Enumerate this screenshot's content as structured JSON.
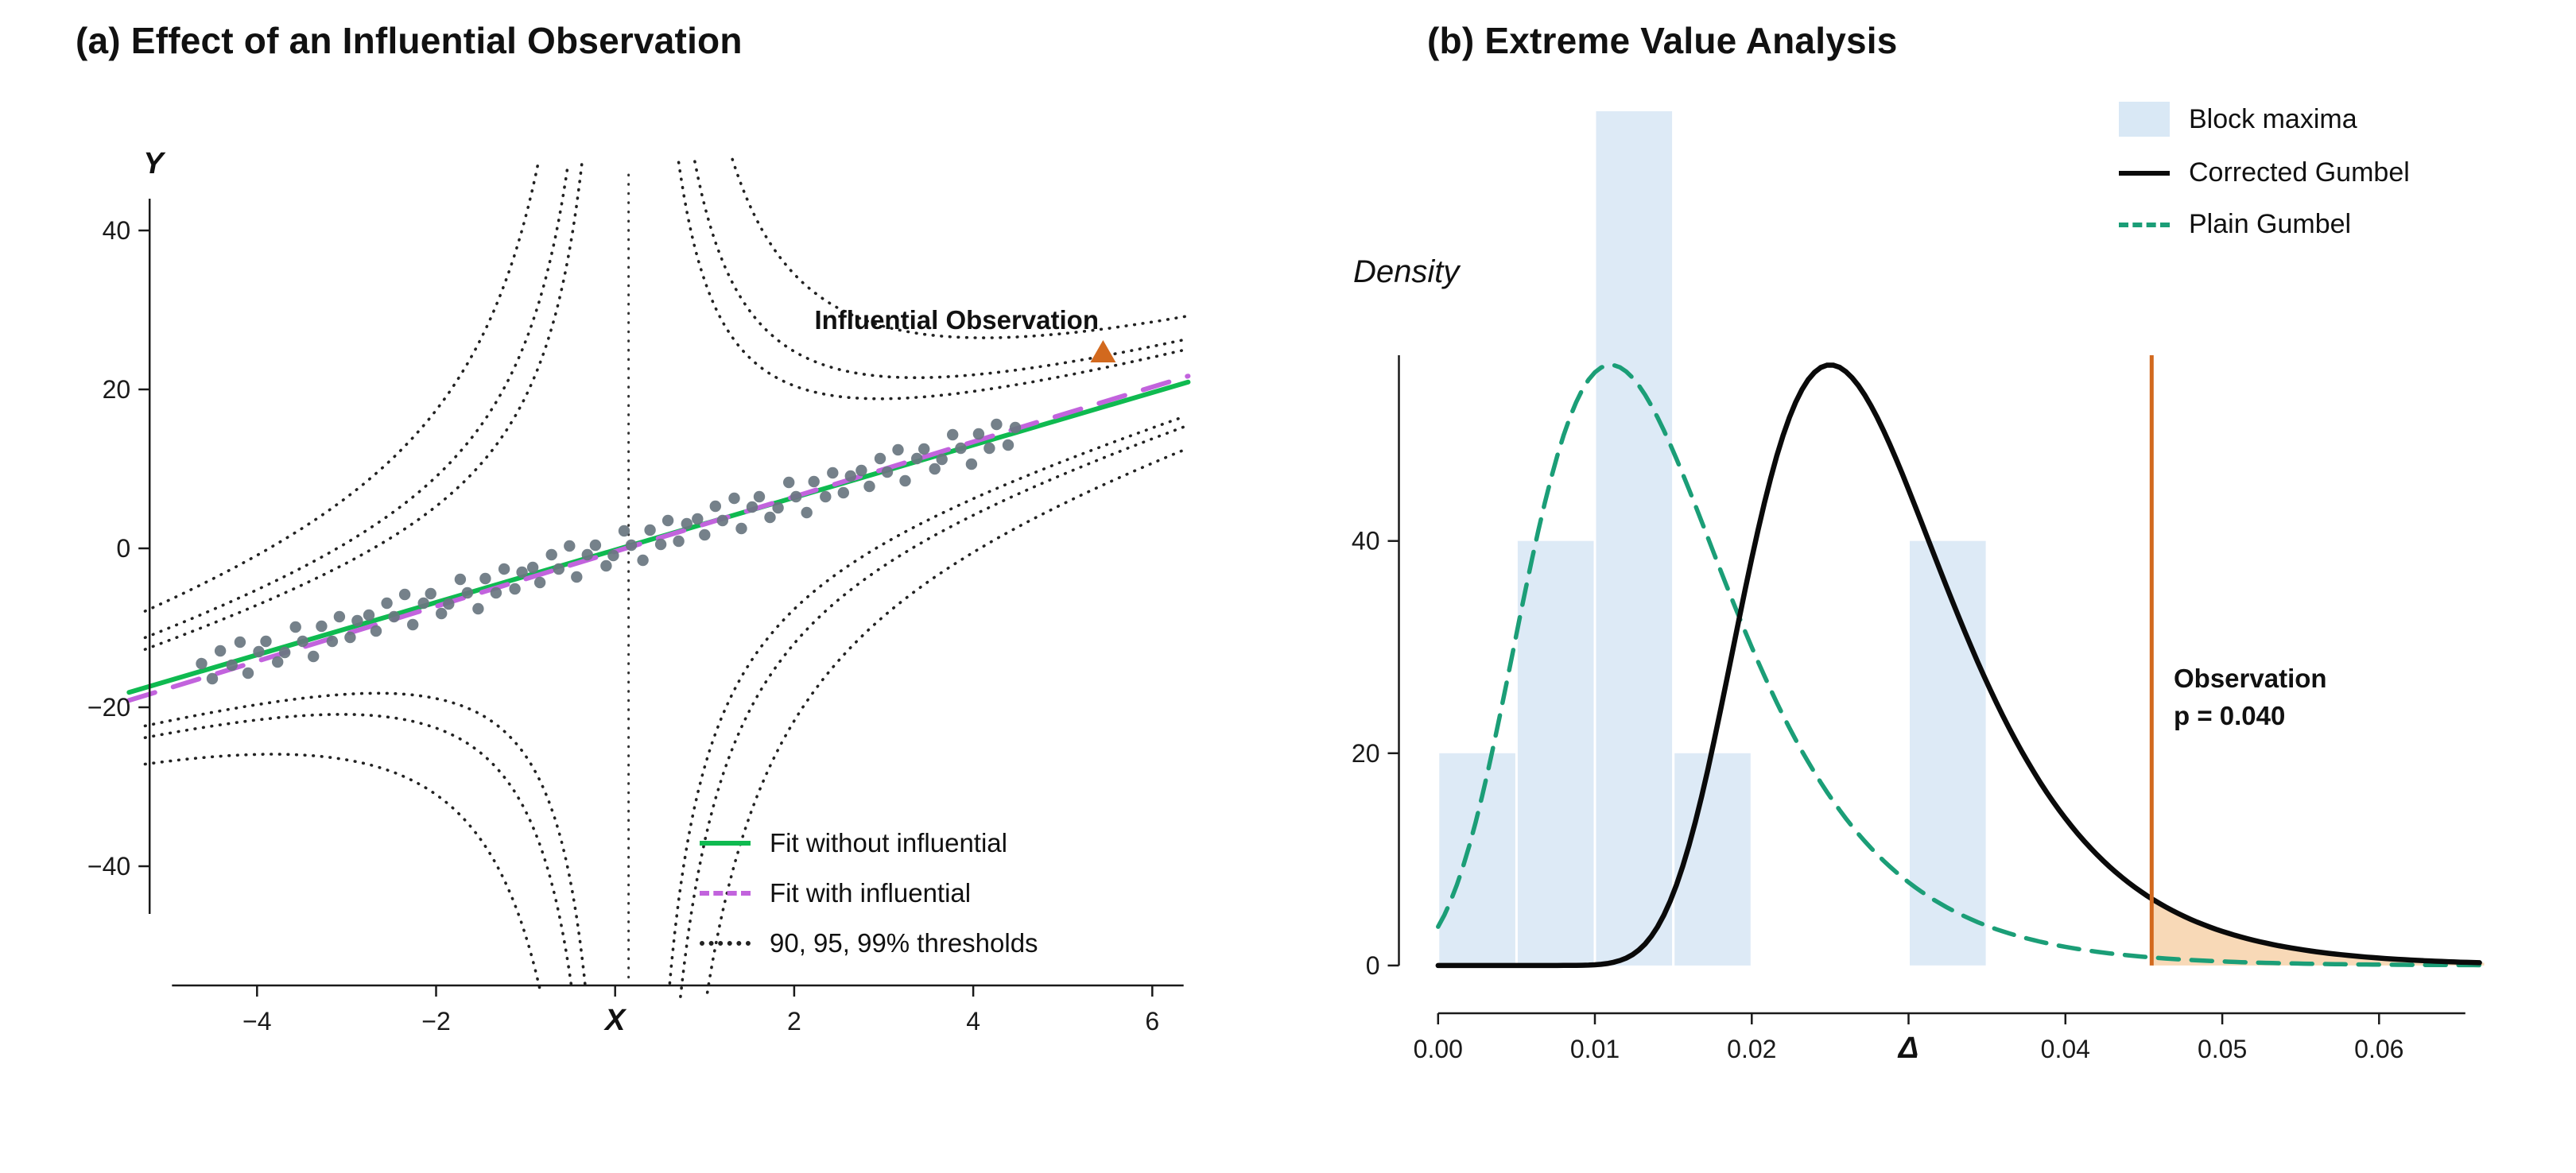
{
  "figure": {
    "background": "#ffffff"
  },
  "chart_data": [
    {
      "type": "scatter",
      "title": "(a) Effect of an Influential Observation",
      "xlabel": "X",
      "ylabel": "Y",
      "xlim": [
        -5.45,
        6.45
      ],
      "ylim": [
        -58,
        50
      ],
      "xticks": {
        "values": [
          -4,
          -2,
          0,
          2,
          4,
          6
        ],
        "labels": [
          "−4",
          "−2",
          "X",
          "2",
          "4",
          "6"
        ]
      },
      "yticks": {
        "values": [
          -40,
          -20,
          0,
          20,
          40
        ],
        "labels": [
          "−40",
          "−20",
          "0",
          "20",
          "40"
        ]
      },
      "fit_without": {
        "label": "Fit without influential",
        "slope": 3.3,
        "intercept": -0.2,
        "color": "#0fba50",
        "style": "solid"
      },
      "fit_with": {
        "label": "Fit with influential",
        "slope": 3.45,
        "intercept": -0.4,
        "color": "#c263dd",
        "style": "dashed"
      },
      "thresholds": {
        "label": "90, 95, 99% thresholds",
        "levels": [
          90,
          95,
          99
        ],
        "center_x": 0.15,
        "c_values": [
          26,
          34,
          52
        ],
        "color": "#222222",
        "style": "dotted"
      },
      "influential_point": {
        "x": 5.45,
        "y": 24.5,
        "marker": "triangle",
        "color": "#d2691e"
      },
      "annotation": {
        "text": "Influential Observation"
      },
      "points_color": "#697680",
      "scatter_points": [
        [
          -4.62,
          -14.5
        ],
        [
          -4.5,
          -16.4
        ],
        [
          -4.41,
          -12.9
        ],
        [
          -4.28,
          -14.7
        ],
        [
          -4.19,
          -11.8
        ],
        [
          -4.1,
          -15.7
        ],
        [
          -3.98,
          -13.0
        ],
        [
          -3.9,
          -11.7
        ],
        [
          -3.77,
          -14.3
        ],
        [
          -3.69,
          -13.1
        ],
        [
          -3.57,
          -9.9
        ],
        [
          -3.49,
          -11.7
        ],
        [
          -3.37,
          -13.6
        ],
        [
          -3.28,
          -9.8
        ],
        [
          -3.16,
          -11.7
        ],
        [
          -3.08,
          -8.6
        ],
        [
          -2.96,
          -11.2
        ],
        [
          -2.88,
          -9.1
        ],
        [
          -2.75,
          -8.4
        ],
        [
          -2.67,
          -10.4
        ],
        [
          -2.55,
          -6.9
        ],
        [
          -2.47,
          -8.6
        ],
        [
          -2.35,
          -5.8
        ],
        [
          -2.26,
          -9.6
        ],
        [
          -2.14,
          -6.9
        ],
        [
          -2.06,
          -5.7
        ],
        [
          -1.94,
          -8.2
        ],
        [
          -1.86,
          -7.0
        ],
        [
          -1.73,
          -3.9
        ],
        [
          -1.65,
          -5.6
        ],
        [
          -1.53,
          -7.6
        ],
        [
          -1.45,
          -3.8
        ],
        [
          -1.33,
          -5.6
        ],
        [
          -1.24,
          -2.6
        ],
        [
          -1.12,
          -5.1
        ],
        [
          -1.04,
          -3.0
        ],
        [
          -0.92,
          -2.4
        ],
        [
          -0.84,
          -4.3
        ],
        [
          -0.71,
          -0.8
        ],
        [
          -0.63,
          -2.6
        ],
        [
          -0.51,
          0.3
        ],
        [
          -0.43,
          -3.6
        ],
        [
          -0.31,
          -0.8
        ],
        [
          -0.22,
          0.4
        ],
        [
          -0.1,
          -2.2
        ],
        [
          -0.02,
          -0.9
        ],
        [
          0.1,
          2.2
        ],
        [
          0.18,
          0.4
        ],
        [
          0.31,
          -1.5
        ],
        [
          0.39,
          2.3
        ],
        [
          0.51,
          0.5
        ],
        [
          0.59,
          3.5
        ],
        [
          0.71,
          0.9
        ],
        [
          0.8,
          3.1
        ],
        [
          0.92,
          3.7
        ],
        [
          1.0,
          1.7
        ],
        [
          1.12,
          5.3
        ],
        [
          1.2,
          3.5
        ],
        [
          1.33,
          6.3
        ],
        [
          1.41,
          2.5
        ],
        [
          1.53,
          5.2
        ],
        [
          1.61,
          6.5
        ],
        [
          1.73,
          3.9
        ],
        [
          1.82,
          5.1
        ],
        [
          1.94,
          8.3
        ],
        [
          2.02,
          6.5
        ],
        [
          2.14,
          4.5
        ],
        [
          2.22,
          8.4
        ],
        [
          2.35,
          6.5
        ],
        [
          2.43,
          9.5
        ],
        [
          2.55,
          7.0
        ],
        [
          2.63,
          9.1
        ],
        [
          2.75,
          9.8
        ],
        [
          2.84,
          7.8
        ],
        [
          2.96,
          11.3
        ],
        [
          3.04,
          9.6
        ],
        [
          3.16,
          12.4
        ],
        [
          3.24,
          8.5
        ],
        [
          3.37,
          11.3
        ],
        [
          3.45,
          12.5
        ],
        [
          3.57,
          10.0
        ],
        [
          3.65,
          11.2
        ],
        [
          3.77,
          14.3
        ],
        [
          3.86,
          12.6
        ],
        [
          3.98,
          10.6
        ],
        [
          4.06,
          14.4
        ],
        [
          4.18,
          12.6
        ],
        [
          4.26,
          15.6
        ],
        [
          4.39,
          13.0
        ],
        [
          4.47,
          15.2
        ]
      ],
      "legend": {
        "position": "bottom-right-inside",
        "items": [
          {
            "label": "Fit without influential",
            "swatch": "line-solid",
            "color": "#0fba50"
          },
          {
            "label": "Fit with influential",
            "swatch": "line-dashed",
            "color": "#c263dd"
          },
          {
            "label": "90, 95, 99% thresholds",
            "swatch": "line-dotted",
            "color": "#222222"
          }
        ]
      }
    },
    {
      "type": "area",
      "title": "(b) Extreme Value Analysis",
      "xlabel": "Δ",
      "ylabel": "Density",
      "xlim": [
        -0.0045,
        0.0685
      ],
      "ylim": [
        -6,
        76
      ],
      "xticks": {
        "values": [
          0,
          0.01,
          0.02,
          0.03,
          0.04,
          0.05,
          0.06
        ],
        "labels": [
          "0.00",
          "0.01",
          "0.02",
          "Δ",
          "0.04",
          "0.05",
          "0.06"
        ]
      },
      "yticks": {
        "values": [
          0,
          20,
          40
        ],
        "labels": [
          "0",
          "20",
          "40"
        ]
      },
      "histogram": {
        "label": "Block maxima",
        "color": "#d9e8f5",
        "bin_width": 0.005,
        "bins": [
          {
            "range": [
              0.0,
              0.005
            ],
            "height": 20
          },
          {
            "range": [
              0.005,
              0.01
            ],
            "height": 40
          },
          {
            "range": [
              0.01,
              0.015
            ],
            "height": 86,
            "clipped_at_top": true
          },
          {
            "range": [
              0.015,
              0.02
            ],
            "height": 20
          },
          {
            "range": [
              0.03,
              0.035
            ],
            "height": 40
          }
        ]
      },
      "curves": [
        {
          "label": "Corrected Gumbel",
          "distribution": "gumbel",
          "mu": 0.025,
          "beta": 0.0065,
          "peak_density": 56.6,
          "color": "#0a0a0a",
          "style": "solid"
        },
        {
          "label": "Plain Gumbel",
          "distribution": "gumbel",
          "mu": 0.011,
          "beta": 0.0065,
          "peak_density": 56.6,
          "color": "#1b9e77",
          "style": "dashed"
        }
      ],
      "observation": {
        "x": 0.0455,
        "p_value": "0.040",
        "line_color": "#d2691e",
        "tail_fill": "#f6cfa5"
      },
      "annotation": {
        "lines": [
          "Observation",
          "p = 0.040"
        ]
      },
      "legend": {
        "position": "top-right",
        "items": [
          {
            "label": "Block maxima",
            "swatch": "rect",
            "color": "#d9e8f5"
          },
          {
            "label": "Corrected Gumbel",
            "swatch": "line-solid",
            "color": "#0a0a0a"
          },
          {
            "label": "Plain Gumbel",
            "swatch": "line-dashed",
            "color": "#1b9e77"
          }
        ]
      }
    }
  ]
}
